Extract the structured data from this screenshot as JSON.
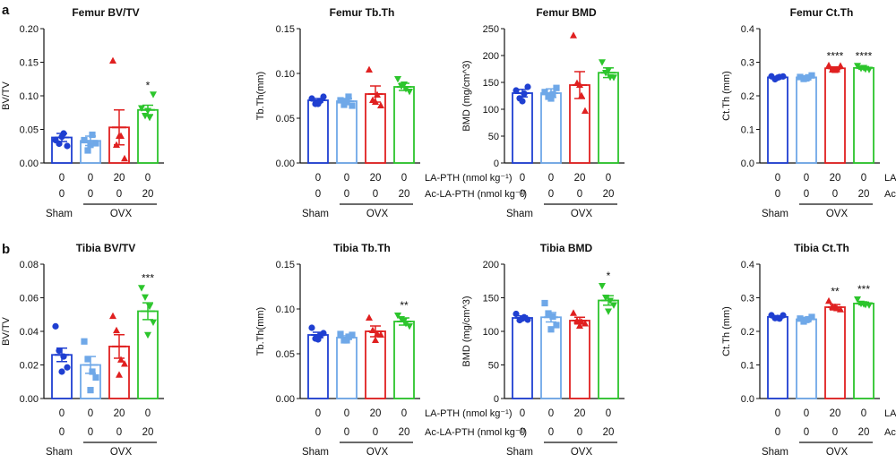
{
  "figure": {
    "panels": [
      {
        "letter": "a"
      },
      {
        "letter": "b"
      }
    ],
    "group_labels": [
      "Sham",
      "OVX"
    ],
    "condition_rows": [
      {
        "label": "LA-PTH (nmol kg⁻¹)",
        "values": [
          "0",
          "0",
          "20",
          "0"
        ]
      },
      {
        "label": "Ac-LA-PTH (nmol kg⁻¹)",
        "values": [
          "0",
          "0",
          "0",
          "20"
        ]
      }
    ],
    "colors": [
      "#1f3fd1",
      "#6fa8e8",
      "#e02020",
      "#2cc52c"
    ],
    "markers": [
      "circle",
      "square",
      "triangle-up",
      "triangle-down"
    ]
  },
  "chart_data": [
    {
      "type": "bar",
      "title": "Femur BV/TV",
      "ylabel": "BV/TV",
      "ylim": [
        0,
        0.2
      ],
      "yticks": [
        "0.00",
        "0.05",
        "0.10",
        "0.15",
        "0.20"
      ],
      "categories": [
        "Sham",
        "OVX",
        "OVX + LA-PTH",
        "OVX + Ac-LA-PTH"
      ],
      "values": [
        0.038,
        0.033,
        0.053,
        0.079
      ],
      "errors": [
        0.006,
        0.007,
        0.026,
        0.007
      ],
      "points": [
        [
          0.034,
          0.03,
          0.044,
          0.024,
          0.039
        ],
        [
          0.034,
          0.02,
          0.042,
          0.028,
          0.027
        ],
        [
          0.152,
          0.028,
          0.04,
          0.005,
          0.04
        ],
        [
          0.082,
          0.072,
          0.068,
          0.101,
          0.078
        ]
      ],
      "stars": [
        "",
        "",
        "",
        "*"
      ]
    },
    {
      "type": "bar",
      "title": "Femur Tb.Th",
      "ylabel": "Tb.Th(mm)",
      "ylim": [
        0,
        0.15
      ],
      "yticks": [
        "0.00",
        "0.05",
        "0.10",
        "0.15"
      ],
      "categories": [
        "Sham",
        "OVX",
        "OVX + LA-PTH",
        "OVX + Ac-LA-PTH"
      ],
      "values": [
        0.07,
        0.069,
        0.077,
        0.085
      ],
      "errors": [
        0.002,
        0.003,
        0.009,
        0.004
      ],
      "points": [
        [
          0.072,
          0.067,
          0.069,
          0.073,
          0.066
        ],
        [
          0.07,
          0.066,
          0.074,
          0.063,
          0.068
        ],
        [
          0.104,
          0.071,
          0.076,
          0.063,
          0.068
        ],
        [
          0.094,
          0.087,
          0.083,
          0.079,
          0.088
        ]
      ],
      "stars": [
        "",
        "",
        "",
        ""
      ]
    },
    {
      "type": "bar",
      "title": "Femur BMD",
      "ylabel": "BMD (mg/cm^3)",
      "ylim": [
        0,
        250
      ],
      "yticks": [
        "0",
        "50",
        "100",
        "150",
        "200",
        "250"
      ],
      "categories": [
        "Sham",
        "OVX",
        "OVX + LA-PTH",
        "OVX + Ac-LA-PTH"
      ],
      "values": [
        130,
        130,
        145,
        168
      ],
      "errors": [
        7,
        8,
        25,
        9
      ],
      "points": [
        [
          135,
          122,
          129,
          140,
          115
        ],
        [
          132,
          125,
          128,
          138,
          120
        ],
        [
          237,
          150,
          125,
          95,
          145
        ],
        [
          188,
          170,
          160,
          158,
          173
        ]
      ],
      "stars": [
        "",
        "",
        "",
        ""
      ]
    },
    {
      "type": "bar",
      "title": "Femur Ct.Th",
      "ylabel": "Ct.Th (mm)",
      "ylim": [
        0,
        0.4
      ],
      "yticks": [
        "0.0",
        "0.1",
        "0.2",
        "0.3",
        "0.4"
      ],
      "categories": [
        "Sham",
        "OVX",
        "OVX + LA-PTH",
        "OVX + Ac-LA-PTH"
      ],
      "values": [
        0.255,
        0.255,
        0.282,
        0.283
      ],
      "errors": [
        0.002,
        0.002,
        0.004,
        0.004
      ],
      "points": [
        [
          0.258,
          0.252,
          0.256,
          0.255,
          0.254
        ],
        [
          0.256,
          0.253,
          0.255,
          0.258,
          0.252
        ],
        [
          0.29,
          0.28,
          0.278,
          0.286,
          0.276
        ],
        [
          0.29,
          0.285,
          0.28,
          0.276,
          0.284
        ]
      ],
      "stars": [
        "",
        "",
        "****",
        "****"
      ]
    },
    {
      "type": "bar",
      "title": "Tibia BV/TV",
      "ylabel": "BV/TV",
      "ylim": [
        0,
        0.08
      ],
      "yticks": [
        "0.00",
        "0.02",
        "0.04",
        "0.06",
        "0.08"
      ],
      "categories": [
        "Sham",
        "OVX",
        "OVX + LA-PTH",
        "OVX + Ac-LA-PTH"
      ],
      "values": [
        0.026,
        0.02,
        0.031,
        0.052
      ],
      "errors": [
        0.004,
        0.005,
        0.007,
        0.005
      ],
      "points": [
        [
          0.043,
          0.029,
          0.025,
          0.018,
          0.016
        ],
        [
          0.034,
          0.024,
          0.016,
          0.012,
          0.005
        ],
        [
          0.049,
          0.041,
          0.023,
          0.02,
          0.014
        ],
        [
          0.066,
          0.061,
          0.055,
          0.045,
          0.038
        ]
      ],
      "stars": [
        "",
        "",
        "",
        "***"
      ]
    },
    {
      "type": "bar",
      "title": "Tibia Tb.Th",
      "ylabel": "Tb.Th(mm)",
      "ylim": [
        0,
        0.15
      ],
      "yticks": [
        "0.00",
        "0.05",
        "0.10",
        "0.15"
      ],
      "categories": [
        "Sham",
        "OVX",
        "OVX + LA-PTH",
        "OVX + Ac-LA-PTH"
      ],
      "values": [
        0.071,
        0.068,
        0.075,
        0.086
      ],
      "errors": [
        0.003,
        0.002,
        0.006,
        0.004
      ],
      "points": [
        [
          0.079,
          0.068,
          0.07,
          0.072,
          0.066
        ],
        [
          0.072,
          0.066,
          0.069,
          0.07,
          0.065
        ],
        [
          0.09,
          0.077,
          0.072,
          0.07,
          0.065
        ],
        [
          0.093,
          0.09,
          0.084,
          0.08,
          0.087
        ]
      ],
      "stars": [
        "",
        "",
        "",
        "**"
      ]
    },
    {
      "type": "bar",
      "title": "Tibia BMD",
      "ylabel": "BMD (mg/cm^3)",
      "ylim": [
        0,
        200
      ],
      "yticks": [
        "0",
        "50",
        "100",
        "150",
        "200"
      ],
      "categories": [
        "Sham",
        "OVX",
        "OVX + LA-PTH",
        "OVX + Ac-LA-PTH"
      ],
      "values": [
        120,
        121,
        116,
        146
      ],
      "errors": [
        3,
        7,
        5,
        7
      ],
      "points": [
        [
          126,
          118,
          121,
          116,
          119
        ],
        [
          142,
          128,
          122,
          108,
          103
        ],
        [
          127,
          117,
          114,
          110,
          108
        ],
        [
          168,
          152,
          146,
          138,
          130
        ]
      ],
      "stars": [
        "",
        "",
        "",
        "*"
      ]
    },
    {
      "type": "bar",
      "title": "Tibia Ct.Th",
      "ylabel": "Ct.Th (mm)",
      "ylim": [
        0,
        0.4
      ],
      "yticks": [
        "0.0",
        "0.1",
        "0.2",
        "0.3",
        "0.4"
      ],
      "categories": [
        "Sham",
        "OVX",
        "OVX + LA-PTH",
        "OVX + Ac-LA-PTH"
      ],
      "values": [
        0.243,
        0.236,
        0.272,
        0.283
      ],
      "errors": [
        0.003,
        0.003,
        0.008,
        0.004
      ],
      "points": [
        [
          0.248,
          0.242,
          0.238,
          0.245,
          0.24
        ],
        [
          0.238,
          0.232,
          0.236,
          0.24,
          0.234
        ],
        [
          0.29,
          0.276,
          0.268,
          0.262,
          0.272
        ],
        [
          0.296,
          0.286,
          0.28,
          0.276,
          0.282
        ]
      ],
      "stars": [
        "",
        "",
        "**",
        "***"
      ]
    }
  ]
}
